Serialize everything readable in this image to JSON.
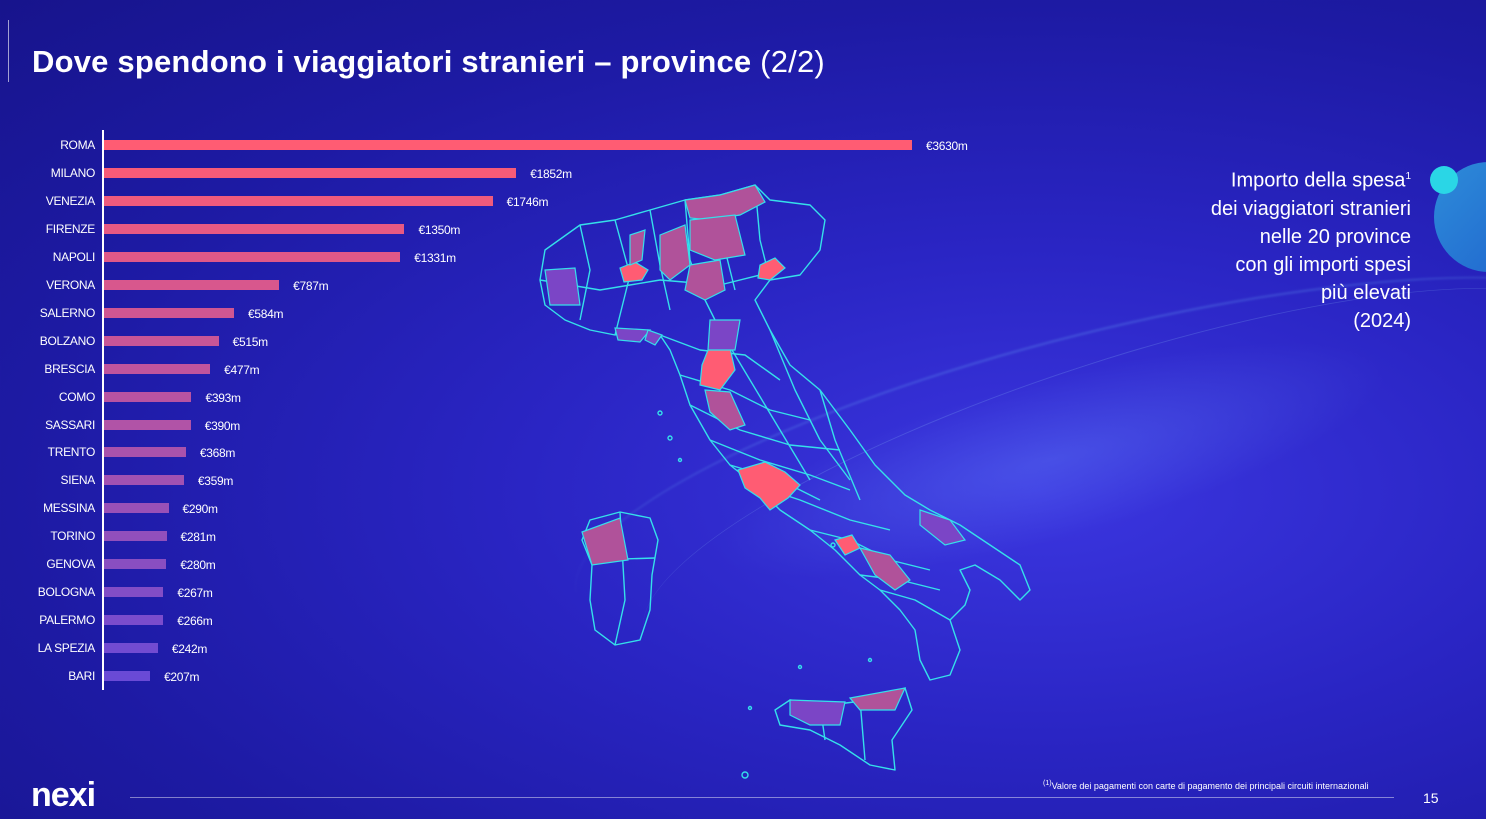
{
  "header": {
    "title_main": "Dove spendono i viaggiatori stranieri – province",
    "title_suffix": "(2/2)"
  },
  "legend": {
    "line1": "Importo della spesa",
    "line1_sup": "1",
    "line2": "dei viaggiatori stranieri",
    "line3": "nelle 20 province",
    "line4": "con gli importi spesi",
    "line5": "più elevati",
    "line6": "(2024)"
  },
  "footer": {
    "logo": "nexi",
    "footnote_marker": "(1)",
    "footnote_text": "Valore dei pagamenti con carte di pagamento dei principali circuiti internazionali",
    "page_number": "15"
  },
  "colors": {
    "bar_high": "#ff5c73",
    "bar_low": "#6a4ad6",
    "map_highlight": "#ff5c73",
    "map_mid": "#b0529a",
    "map_low": "#7b45c6",
    "map_outline": "#35e0ea",
    "accent_dot": "#2ad6e6"
  },
  "chart_data": {
    "type": "bar",
    "orientation": "horizontal",
    "categories": [
      "ROMA",
      "MILANO",
      "VENEZIA",
      "FIRENZE",
      "NAPOLI",
      "VERONA",
      "SALERNO",
      "BOLZANO",
      "BRESCIA",
      "COMO",
      "SASSARI",
      "TRENTO",
      "SIENA",
      "MESSINA",
      "TORINO",
      "GENOVA",
      "BOLOGNA",
      "PALERMO",
      "LA SPEZIA",
      "BARI"
    ],
    "values": [
      3630,
      1852,
      1746,
      1350,
      1331,
      787,
      584,
      515,
      477,
      393,
      390,
      368,
      359,
      290,
      281,
      280,
      267,
      266,
      242,
      207
    ],
    "value_labels": [
      "€3630m",
      "€1852m",
      "€1746m",
      "€1350m",
      "€1331m",
      "€787m",
      "€584m",
      "€515m",
      "€477m",
      "€393m",
      "€390m",
      "€368m",
      "€359m",
      "€290m",
      "€281m",
      "€280m",
      "€267m",
      "€266m",
      "€242m",
      "€207m"
    ],
    "unit": "€m",
    "xlim": [
      0,
      3630
    ],
    "grid": false,
    "legend": "none"
  }
}
